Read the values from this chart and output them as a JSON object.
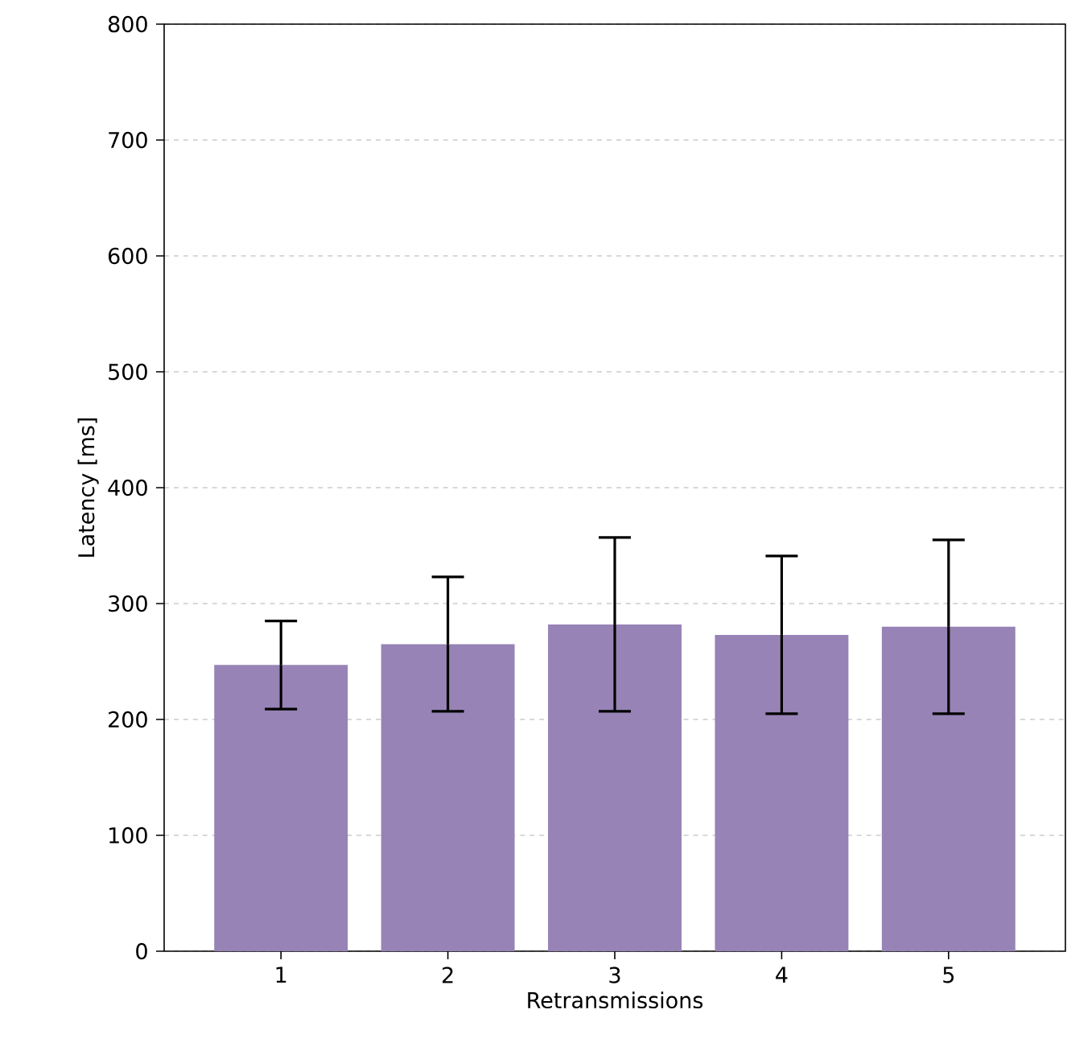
{
  "chart_data": {
    "type": "bar",
    "xlabel": "Retransmissions",
    "ylabel": "Latency [ms]",
    "categories": [
      "1",
      "2",
      "3",
      "4",
      "5"
    ],
    "values": [
      247,
      265,
      282,
      273,
      280
    ],
    "errors": [
      38,
      58,
      75,
      68,
      75
    ],
    "color": "#9783b5",
    "ylim": [
      0,
      800
    ],
    "yticks": [
      0,
      100,
      200,
      300,
      400,
      500,
      600,
      700,
      800
    ],
    "grid": "y"
  }
}
